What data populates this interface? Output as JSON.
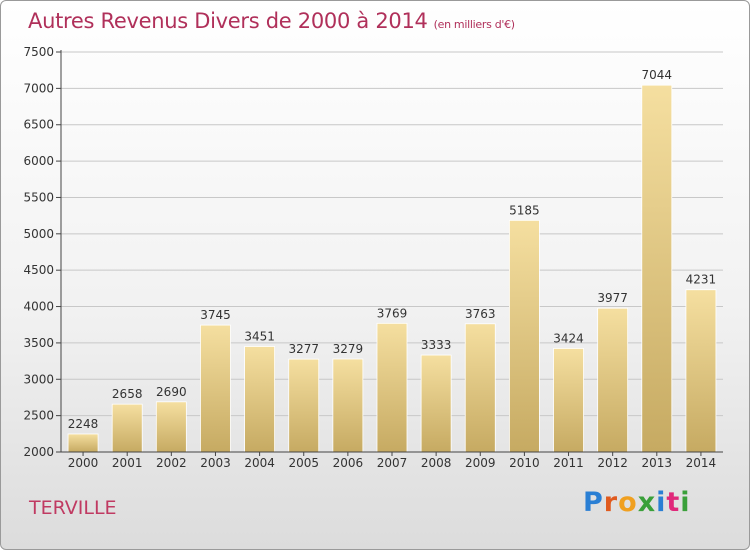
{
  "header": {
    "title": "Autres Revenus Divers de 2000 à 2014",
    "unit": "(en milliers d'€)"
  },
  "footer": {
    "commune": "TERVILLE",
    "logo_letters": [
      "P",
      "r",
      "o",
      "x",
      "i",
      "t",
      "i"
    ],
    "logo_colors": [
      "#2a7fd4",
      "#e05a1e",
      "#f0a020",
      "#3aa03a",
      "#2a7fd4",
      "#e0287a",
      "#3aa03a"
    ]
  },
  "colors": {
    "title": "#b0305a",
    "bar_top": "#f5dfa0",
    "bar_bottom": "#c6aa62",
    "grid": "#c8c8c8",
    "axis": "#444444"
  },
  "chart_data": {
    "type": "bar",
    "title": "Autres Revenus Divers de 2000 à 2014",
    "subtitle": "(en milliers d'€)",
    "categories": [
      "2000",
      "2001",
      "2002",
      "2003",
      "2004",
      "2005",
      "2006",
      "2007",
      "2008",
      "2009",
      "2010",
      "2011",
      "2012",
      "2013",
      "2014"
    ],
    "values": [
      2248,
      2658,
      2690,
      3745,
      3451,
      3277,
      3279,
      3769,
      3333,
      3763,
      5185,
      3424,
      3977,
      7044,
      4231
    ],
    "ylim": [
      2000,
      7500
    ],
    "yticks": [
      2000,
      2500,
      3000,
      3500,
      4000,
      4500,
      5000,
      5500,
      6000,
      6500,
      7000,
      7500
    ],
    "grid": true,
    "legend": "none"
  }
}
